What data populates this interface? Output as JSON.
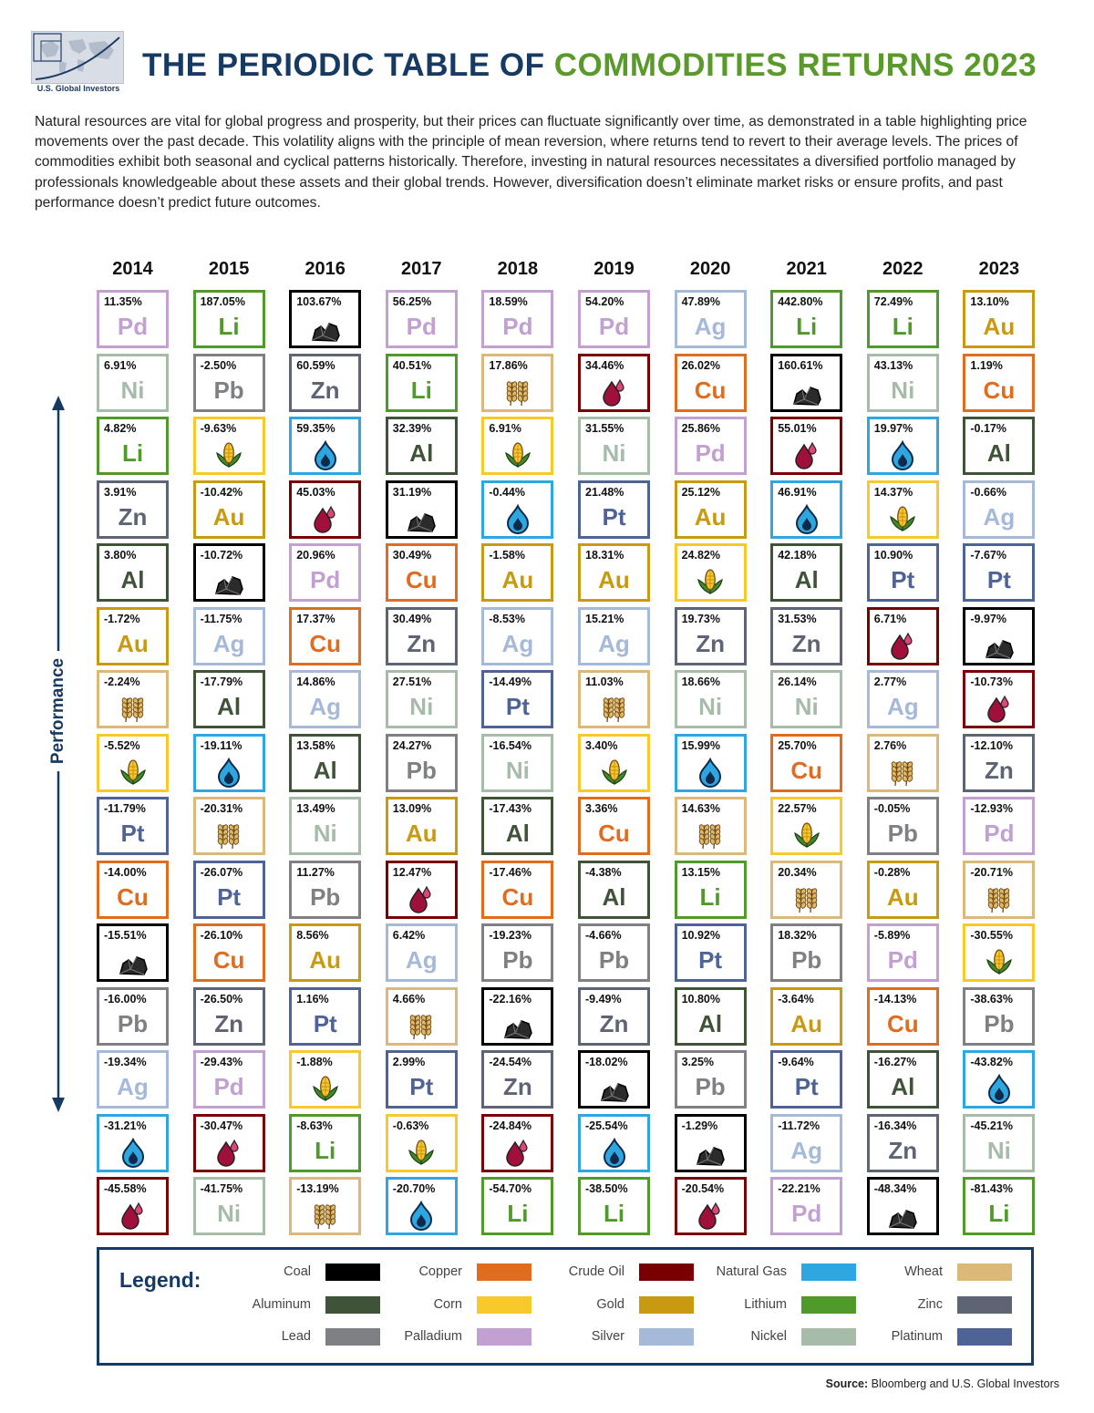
{
  "header": {
    "logo_text": "U.S. Global Investors",
    "title_part1": "THE PERIODIC TABLE OF",
    "title_part2": "COMMODITIES RETURNS 2023",
    "intro": "Natural resources are vital for global progress and prosperity, but their prices can fluctuate significantly over time, as demonstrated in a table highlighting price movements over the past decade. This volatility aligns with the principle of mean reversion, where returns tend to revert to their average levels. The prices of commodities exhibit both seasonal and cyclical patterns historically. Therefore, investing in natural resources necessitates a diversified portfolio managed by professionals knowledgeable about these assets and their global trends. However, diversification doesn’t eliminate market risks or ensure profits, and past performance doesn’t predict future outcomes."
  },
  "axis": {
    "performance_label": "Performance"
  },
  "legend": {
    "title": "Legend:",
    "items": [
      {
        "label": "Coal",
        "color": "#000000"
      },
      {
        "label": "Copper",
        "color": "#e06c1f"
      },
      {
        "label": "Crude Oil",
        "color": "#780000"
      },
      {
        "label": "Natural Gas",
        "color": "#2ea7e0"
      },
      {
        "label": "Wheat",
        "color": "#dcb97a"
      },
      {
        "label": "Aluminum",
        "color": "#3f5338"
      },
      {
        "label": "Corn",
        "color": "#f7c92b"
      },
      {
        "label": "Gold",
        "color": "#c89a12"
      },
      {
        "label": "Lithium",
        "color": "#4f9a2b"
      },
      {
        "label": "Zinc",
        "color": "#5e6474"
      },
      {
        "label": "Lead",
        "color": "#7e8083"
      },
      {
        "label": "Palladium",
        "color": "#c2a0d2"
      },
      {
        "label": "Silver",
        "color": "#a6b9d8"
      },
      {
        "label": "Nickel",
        "color": "#a7bba9"
      },
      {
        "label": "Platinum",
        "color": "#4f6495"
      }
    ]
  },
  "source": {
    "label": "Source:",
    "text": "Bloomberg and U.S. Global Investors"
  },
  "chart_data": {
    "type": "table",
    "title": "THE PERIODIC TABLE OF COMMODITIES RETURNS 2023",
    "ylabel": "Performance",
    "years": [
      "2014",
      "2015",
      "2016",
      "2017",
      "2018",
      "2019",
      "2020",
      "2021",
      "2022",
      "2023"
    ],
    "commodities": {
      "coal": {
        "symbol": "",
        "icon": "coal-icon",
        "color": "#000000"
      },
      "copper": {
        "symbol": "Cu",
        "color": "#e06c1f"
      },
      "oil": {
        "symbol": "",
        "icon": "crude-oil-icon",
        "color": "#780000"
      },
      "gas": {
        "symbol": "",
        "icon": "natural-gas-icon",
        "color": "#2ea7e0"
      },
      "wheat": {
        "symbol": "",
        "icon": "wheat-icon",
        "color": "#dcb97a"
      },
      "aluminum": {
        "symbol": "Al",
        "color": "#3f5338"
      },
      "corn": {
        "symbol": "",
        "icon": "corn-icon",
        "color": "#f7c92b"
      },
      "gold": {
        "symbol": "Au",
        "color": "#c89a12"
      },
      "lithium": {
        "symbol": "Li",
        "color": "#4f9a2b"
      },
      "zinc": {
        "symbol": "Zn",
        "color": "#5e6474"
      },
      "lead": {
        "symbol": "Pb",
        "color": "#7e8083"
      },
      "palladium": {
        "symbol": "Pd",
        "color": "#c2a0d2"
      },
      "silver": {
        "symbol": "Ag",
        "color": "#a6b9d8"
      },
      "nickel": {
        "symbol": "Ni",
        "color": "#a7bba9"
      },
      "platinum": {
        "symbol": "Pt",
        "color": "#4f6495"
      }
    },
    "columns": [
      [
        {
          "c": "palladium",
          "v": "11.35%"
        },
        {
          "c": "nickel",
          "v": "6.91%"
        },
        {
          "c": "lithium",
          "v": "4.82%"
        },
        {
          "c": "zinc",
          "v": "3.91%"
        },
        {
          "c": "aluminum",
          "v": "3.80%"
        },
        {
          "c": "gold",
          "v": "-1.72%"
        },
        {
          "c": "wheat",
          "v": "-2.24%"
        },
        {
          "c": "corn",
          "v": "-5.52%"
        },
        {
          "c": "platinum",
          "v": "-11.79%"
        },
        {
          "c": "copper",
          "v": "-14.00%"
        },
        {
          "c": "coal",
          "v": "-15.51%"
        },
        {
          "c": "lead",
          "v": "-16.00%"
        },
        {
          "c": "silver",
          "v": "-19.34%"
        },
        {
          "c": "gas",
          "v": "-31.21%"
        },
        {
          "c": "oil",
          "v": "-45.58%"
        }
      ],
      [
        {
          "c": "lithium",
          "v": "187.05%"
        },
        {
          "c": "lead",
          "v": "-2.50%"
        },
        {
          "c": "corn",
          "v": "-9.63%"
        },
        {
          "c": "gold",
          "v": "-10.42%"
        },
        {
          "c": "coal",
          "v": "-10.72%"
        },
        {
          "c": "silver",
          "v": "-11.75%"
        },
        {
          "c": "aluminum",
          "v": "-17.79%"
        },
        {
          "c": "gas",
          "v": "-19.11%"
        },
        {
          "c": "wheat",
          "v": "-20.31%"
        },
        {
          "c": "platinum",
          "v": "-26.07%"
        },
        {
          "c": "copper",
          "v": "-26.10%"
        },
        {
          "c": "zinc",
          "v": "-26.50%"
        },
        {
          "c": "palladium",
          "v": "-29.43%"
        },
        {
          "c": "oil",
          "v": "-30.47%"
        },
        {
          "c": "nickel",
          "v": "-41.75%"
        }
      ],
      [
        {
          "c": "coal",
          "v": "103.67%"
        },
        {
          "c": "zinc",
          "v": "60.59%"
        },
        {
          "c": "gas",
          "v": "59.35%"
        },
        {
          "c": "oil",
          "v": "45.03%"
        },
        {
          "c": "palladium",
          "v": "20.96%"
        },
        {
          "c": "copper",
          "v": "17.37%"
        },
        {
          "c": "silver",
          "v": "14.86%"
        },
        {
          "c": "aluminum",
          "v": "13.58%"
        },
        {
          "c": "nickel",
          "v": "13.49%"
        },
        {
          "c": "lead",
          "v": "11.27%"
        },
        {
          "c": "gold",
          "v": "8.56%"
        },
        {
          "c": "platinum",
          "v": "1.16%"
        },
        {
          "c": "corn",
          "v": "-1.88%"
        },
        {
          "c": "lithium",
          "v": "-8.63%"
        },
        {
          "c": "wheat",
          "v": "-13.19%"
        }
      ],
      [
        {
          "c": "palladium",
          "v": "56.25%"
        },
        {
          "c": "lithium",
          "v": "40.51%"
        },
        {
          "c": "aluminum",
          "v": "32.39%"
        },
        {
          "c": "coal",
          "v": "31.19%"
        },
        {
          "c": "copper",
          "v": "30.49%"
        },
        {
          "c": "zinc",
          "v": "30.49%"
        },
        {
          "c": "nickel",
          "v": "27.51%"
        },
        {
          "c": "lead",
          "v": "24.27%"
        },
        {
          "c": "gold",
          "v": "13.09%"
        },
        {
          "c": "oil",
          "v": "12.47%"
        },
        {
          "c": "silver",
          "v": "6.42%"
        },
        {
          "c": "wheat",
          "v": "4.66%"
        },
        {
          "c": "platinum",
          "v": "2.99%"
        },
        {
          "c": "corn",
          "v": "-0.63%"
        },
        {
          "c": "gas",
          "v": "-20.70%"
        }
      ],
      [
        {
          "c": "palladium",
          "v": "18.59%"
        },
        {
          "c": "wheat",
          "v": "17.86%"
        },
        {
          "c": "corn",
          "v": "6.91%"
        },
        {
          "c": "gas",
          "v": "-0.44%"
        },
        {
          "c": "gold",
          "v": "-1.58%"
        },
        {
          "c": "silver",
          "v": "-8.53%"
        },
        {
          "c": "platinum",
          "v": "-14.49%"
        },
        {
          "c": "nickel",
          "v": "-16.54%"
        },
        {
          "c": "aluminum",
          "v": "-17.43%"
        },
        {
          "c": "copper",
          "v": "-17.46%"
        },
        {
          "c": "lead",
          "v": "-19.23%"
        },
        {
          "c": "coal",
          "v": "-22.16%"
        },
        {
          "c": "zinc",
          "v": "-24.54%"
        },
        {
          "c": "oil",
          "v": "-24.84%"
        },
        {
          "c": "lithium",
          "v": "-54.70%"
        }
      ],
      [
        {
          "c": "palladium",
          "v": "54.20%"
        },
        {
          "c": "oil",
          "v": "34.46%"
        },
        {
          "c": "nickel",
          "v": "31.55%"
        },
        {
          "c": "platinum",
          "v": "21.48%"
        },
        {
          "c": "gold",
          "v": "18.31%"
        },
        {
          "c": "silver",
          "v": "15.21%"
        },
        {
          "c": "wheat",
          "v": "11.03%"
        },
        {
          "c": "corn",
          "v": "3.40%"
        },
        {
          "c": "copper",
          "v": "3.36%"
        },
        {
          "c": "aluminum",
          "v": "-4.38%"
        },
        {
          "c": "lead",
          "v": "-4.66%"
        },
        {
          "c": "zinc",
          "v": "-9.49%"
        },
        {
          "c": "coal",
          "v": "-18.02%"
        },
        {
          "c": "gas",
          "v": "-25.54%"
        },
        {
          "c": "lithium",
          "v": "-38.50%"
        }
      ],
      [
        {
          "c": "silver",
          "v": "47.89%"
        },
        {
          "c": "copper",
          "v": "26.02%"
        },
        {
          "c": "palladium",
          "v": "25.86%"
        },
        {
          "c": "gold",
          "v": "25.12%"
        },
        {
          "c": "corn",
          "v": "24.82%"
        },
        {
          "c": "zinc",
          "v": "19.73%"
        },
        {
          "c": "nickel",
          "v": "18.66%"
        },
        {
          "c": "gas",
          "v": "15.99%"
        },
        {
          "c": "wheat",
          "v": "14.63%"
        },
        {
          "c": "lithium",
          "v": "13.15%"
        },
        {
          "c": "platinum",
          "v": "10.92%"
        },
        {
          "c": "aluminum",
          "v": "10.80%"
        },
        {
          "c": "lead",
          "v": "3.25%"
        },
        {
          "c": "coal",
          "v": "-1.29%"
        },
        {
          "c": "oil",
          "v": "-20.54%"
        }
      ],
      [
        {
          "c": "lithium",
          "v": "442.80%"
        },
        {
          "c": "coal",
          "v": "160.61%"
        },
        {
          "c": "oil",
          "v": "55.01%"
        },
        {
          "c": "gas",
          "v": "46.91%"
        },
        {
          "c": "aluminum",
          "v": "42.18%"
        },
        {
          "c": "zinc",
          "v": "31.53%"
        },
        {
          "c": "nickel",
          "v": "26.14%"
        },
        {
          "c": "copper",
          "v": "25.70%"
        },
        {
          "c": "corn",
          "v": "22.57%"
        },
        {
          "c": "wheat",
          "v": "20.34%"
        },
        {
          "c": "lead",
          "v": "18.32%"
        },
        {
          "c": "gold",
          "v": "-3.64%"
        },
        {
          "c": "platinum",
          "v": "-9.64%"
        },
        {
          "c": "silver",
          "v": "-11.72%"
        },
        {
          "c": "palladium",
          "v": "-22.21%"
        }
      ],
      [
        {
          "c": "lithium",
          "v": "72.49%"
        },
        {
          "c": "nickel",
          "v": "43.13%"
        },
        {
          "c": "gas",
          "v": "19.97%"
        },
        {
          "c": "corn",
          "v": "14.37%"
        },
        {
          "c": "platinum",
          "v": "10.90%"
        },
        {
          "c": "oil",
          "v": "6.71%"
        },
        {
          "c": "silver",
          "v": "2.77%"
        },
        {
          "c": "wheat",
          "v": "2.76%"
        },
        {
          "c": "lead",
          "v": "-0.05%"
        },
        {
          "c": "gold",
          "v": "-0.28%"
        },
        {
          "c": "palladium",
          "v": "-5.89%"
        },
        {
          "c": "copper",
          "v": "-14.13%"
        },
        {
          "c": "aluminum",
          "v": "-16.27%"
        },
        {
          "c": "zinc",
          "v": "-16.34%"
        },
        {
          "c": "coal",
          "v": "-48.34%"
        }
      ],
      [
        {
          "c": "gold",
          "v": "13.10%"
        },
        {
          "c": "copper",
          "v": "1.19%"
        },
        {
          "c": "aluminum",
          "v": "-0.17%"
        },
        {
          "c": "silver",
          "v": "-0.66%"
        },
        {
          "c": "platinum",
          "v": "-7.67%"
        },
        {
          "c": "coal",
          "v": "-9.97%"
        },
        {
          "c": "oil",
          "v": "-10.73%"
        },
        {
          "c": "zinc",
          "v": "-12.10%"
        },
        {
          "c": "palladium",
          "v": "-12.93%"
        },
        {
          "c": "wheat",
          "v": "-20.71%"
        },
        {
          "c": "corn",
          "v": "-30.55%"
        },
        {
          "c": "lead",
          "v": "-38.63%"
        },
        {
          "c": "gas",
          "v": "-43.82%"
        },
        {
          "c": "nickel",
          "v": "-45.21%"
        },
        {
          "c": "lithium",
          "v": "-81.43%"
        }
      ]
    ]
  }
}
